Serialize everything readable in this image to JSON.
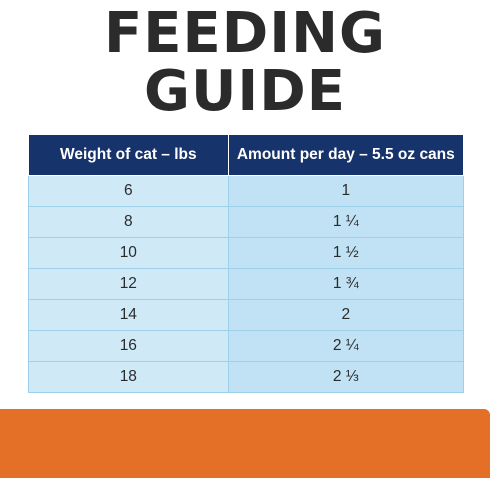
{
  "title": {
    "line1": "FEEDING",
    "line2": "GUIDE"
  },
  "table": {
    "headers": [
      "Weight of cat – lbs",
      "Amount per day – 5.5 oz cans"
    ],
    "rows": [
      [
        "6",
        "1"
      ],
      [
        "8",
        "1 ¼"
      ],
      [
        "10",
        "1 ½"
      ],
      [
        "12",
        "1 ¾"
      ],
      [
        "14",
        "2"
      ],
      [
        "16",
        "2 ¼"
      ],
      [
        "18",
        "2 ⅓"
      ]
    ]
  },
  "colors": {
    "header_bg": "#16336b",
    "cell_light": "#cfe9f7",
    "cell_mid": "#c0e2f4",
    "band": "#e46f27",
    "title_text": "#2b2b2b"
  }
}
